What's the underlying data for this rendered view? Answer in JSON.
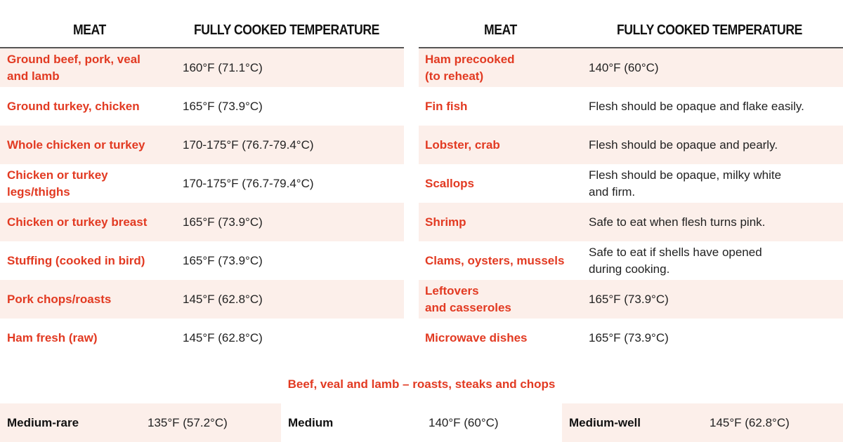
{
  "left_table": {
    "headers": [
      "MEAT",
      "FULLY COOKED TEMPERATURE"
    ],
    "rows": [
      [
        "Ground beef, pork, veal\nand lamb",
        "160°F (71.1°C)"
      ],
      [
        "Ground turkey, chicken",
        "165°F (73.9°C)"
      ],
      [
        "Whole chicken or turkey",
        "170-175°F (76.7-79.4°C)"
      ],
      [
        "Chicken or turkey\nlegs/thighs",
        "170-175°F (76.7-79.4°C)"
      ],
      [
        "Chicken or turkey breast",
        "165°F (73.9°C)"
      ],
      [
        "Stuffing (cooked in bird)",
        "165°F (73.9°C)"
      ],
      [
        "Pork chops/roasts",
        "145°F (62.8°C)"
      ],
      [
        "Ham fresh (raw)",
        "145°F (62.8°C)"
      ]
    ]
  },
  "right_table": {
    "headers": [
      "MEAT",
      "FULLY COOKED TEMPERATURE"
    ],
    "rows": [
      [
        "Ham precooked\n(to reheat)",
        "140°F (60°C)"
      ],
      [
        "Fin fish",
        "Flesh should be opaque and flake easily."
      ],
      [
        "Lobster, crab",
        "Flesh should be opaque and pearly."
      ],
      [
        "Scallops",
        "Flesh should be opaque, milky white\nand firm."
      ],
      [
        "Shrimp",
        "Safe to eat when flesh turns pink."
      ],
      [
        "Clams, oysters, mussels",
        "Safe to eat if shells have opened\nduring cooking."
      ],
      [
        "Leftovers\nand casseroles",
        "165°F (73.9°C)"
      ],
      [
        "Microwave dishes",
        "165°F (73.9°C)"
      ]
    ]
  },
  "beef_section": {
    "title": "Beef, veal and lamb – roasts, steaks and chops",
    "rows": [
      [
        "Medium-rare",
        "135°F (57.2°C)"
      ],
      [
        "Medium",
        "140°F (60°C)"
      ],
      [
        "Medium-well",
        "145°F (62.8°C)"
      ]
    ]
  }
}
